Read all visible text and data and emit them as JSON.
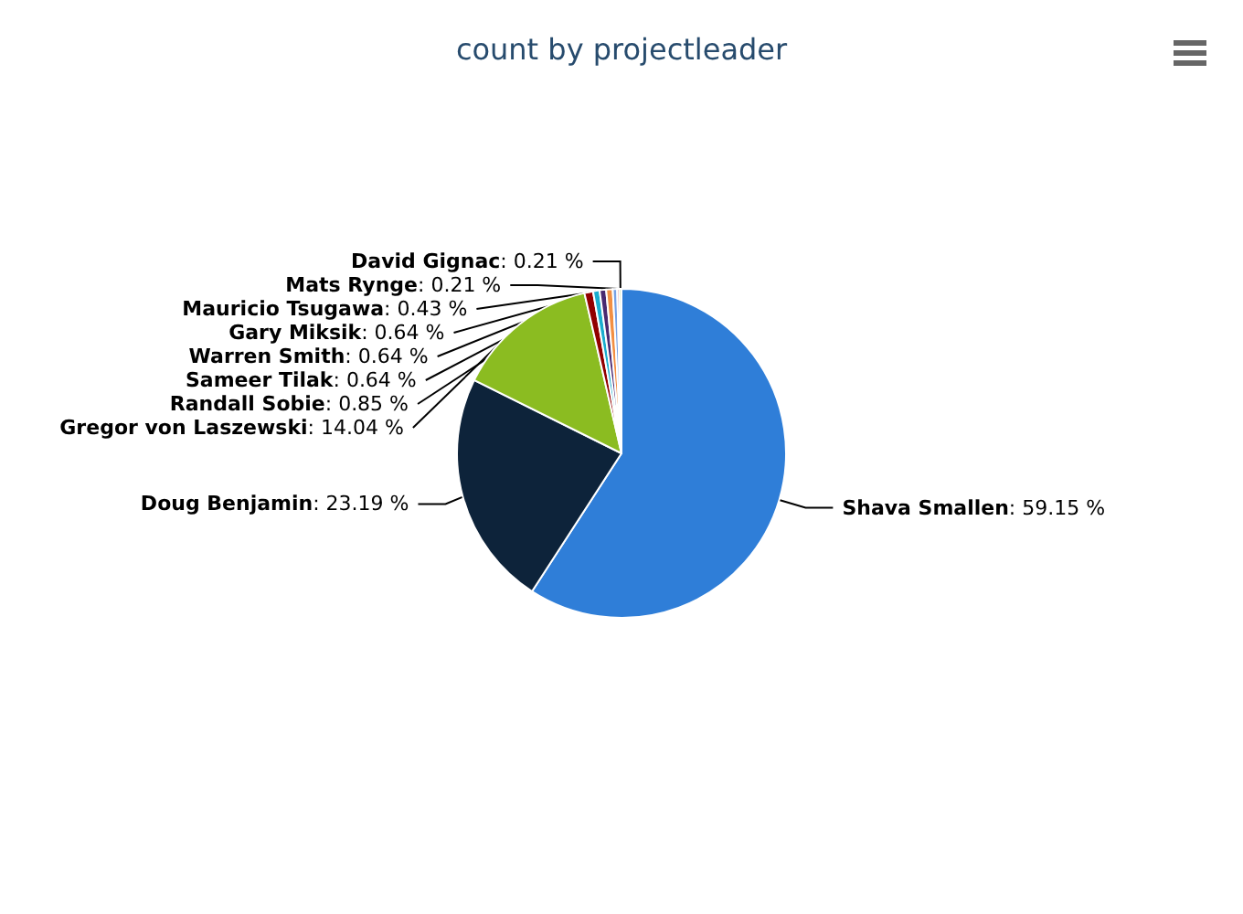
{
  "chart_data": {
    "type": "pie",
    "title": "count by projectleader",
    "categories": [
      "Shava Smallen",
      "Doug Benjamin",
      "Gregor von Laszewski",
      "Randall Sobie",
      "Sameer Tilak",
      "Warren Smith",
      "Gary Miksik",
      "Mauricio Tsugawa",
      "Mats Rynge",
      "David Gignac"
    ],
    "values": [
      59.15,
      23.19,
      14.04,
      0.85,
      0.64,
      0.64,
      0.64,
      0.43,
      0.21,
      0.21
    ],
    "value_labels": [
      ": 59.15 %",
      ": 23.19 %",
      ": 14.04 %",
      ": 0.85 %",
      ": 0.64 %",
      ": 0.64 %",
      ": 0.64 %",
      ": 0.43 %",
      ": 0.21 %",
      ": 0.21 %"
    ],
    "colors": [
      "#2f7ed8",
      "#0d233a",
      "#8bbc21",
      "#910000",
      "#1aadce",
      "#492970",
      "#f28f43",
      "#77a1e5",
      "#c42525",
      "#a6c96a"
    ]
  }
}
